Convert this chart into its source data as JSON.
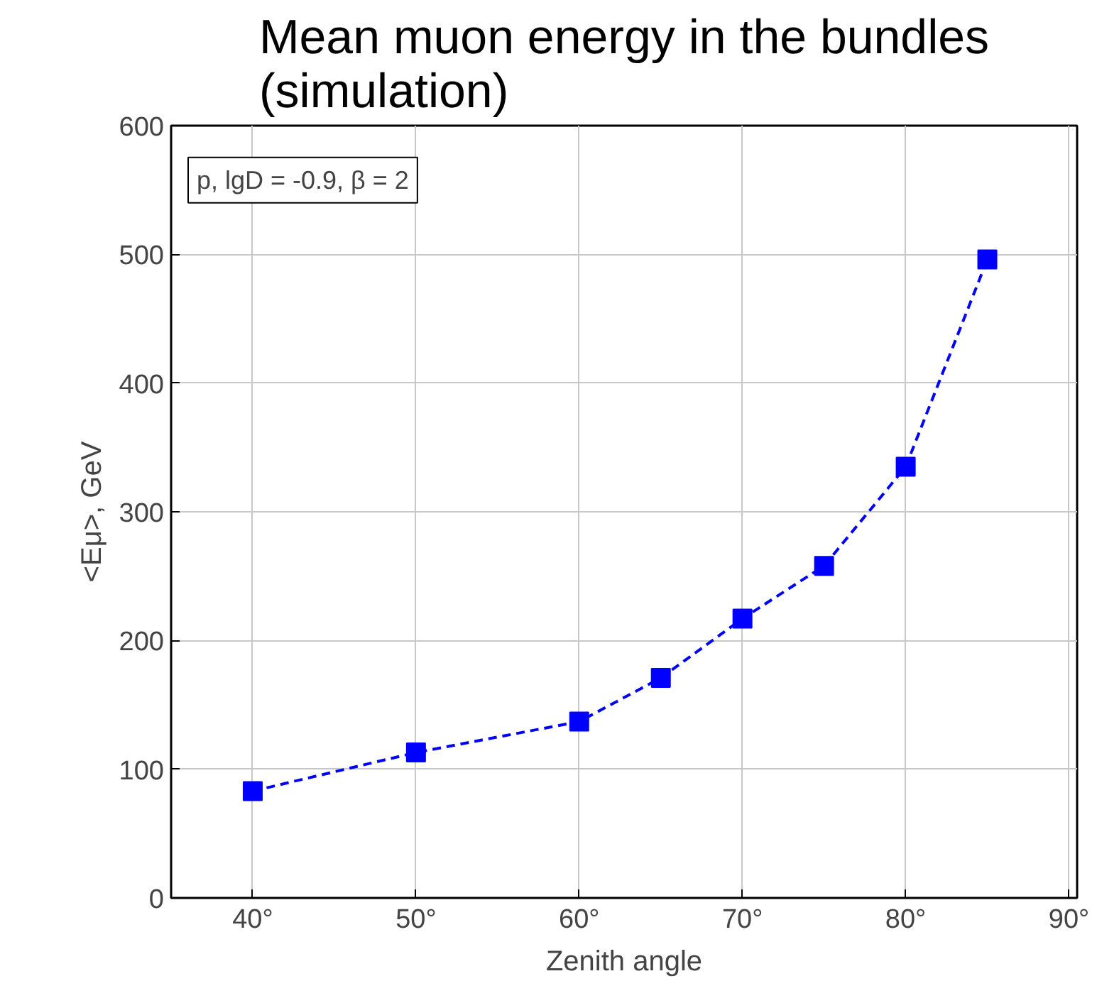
{
  "chart_data": {
    "type": "line",
    "title": "Mean muon energy in the bundles\n(simulation)",
    "xlabel": "Zenith angle",
    "ylabel": "<Eμ>, GeV",
    "annotations": [
      "p, lgD = -0.9, β = 2"
    ],
    "x": [
      40,
      50,
      60,
      65,
      70,
      75,
      80,
      85
    ],
    "series": [
      {
        "color": "#0000ff",
        "values": [
          83,
          113,
          137,
          171,
          217,
          258,
          335,
          496
        ]
      }
    ],
    "marker": "square",
    "line_style": "dashed",
    "grid": true,
    "xlim": [
      35,
      90.5
    ],
    "ylim": [
      0,
      600
    ],
    "xticks": [
      {
        "value": 40,
        "label": "40°"
      },
      {
        "value": 50,
        "label": "50°"
      },
      {
        "value": 60,
        "label": "60°"
      },
      {
        "value": 70,
        "label": "70°"
      },
      {
        "value": 80,
        "label": "80°"
      },
      {
        "value": 90,
        "label": "90°"
      }
    ],
    "yticks": [
      0,
      100,
      200,
      300,
      400,
      500,
      600
    ]
  }
}
